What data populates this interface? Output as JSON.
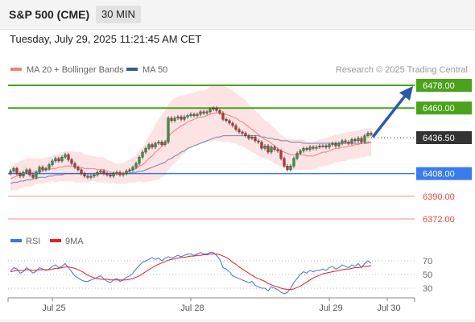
{
  "header": {
    "title": "S&P 500 (CME)",
    "timeframe": "30 MIN"
  },
  "timestamp": "Tuesday, July 29, 2025 11:21:45 AM CET",
  "legend": [
    {
      "label": "MA 20 + Bollinger Bands",
      "color": "#f08080"
    },
    {
      "label": "MA 50",
      "color": "#3a5a98"
    }
  ],
  "source": "Research © 2025 Trading Central",
  "colors": {
    "green": "#4aa31a",
    "blue": "#3a7bef",
    "red": "#ee4444",
    "dark": "#333333",
    "bb_fill": "#fde0e0",
    "arrow": "#2a5ba8"
  },
  "chart_data": {
    "type": "line",
    "instrument": "S&P 500 (CME)",
    "interval": "30 MIN",
    "price_axis": {
      "min": 6355,
      "max": 6492
    },
    "x_ticks": [
      {
        "label": "Jul 25",
        "i": 13
      },
      {
        "label": "Jul 28",
        "i": 56
      },
      {
        "label": "Jul 29",
        "i": 99
      },
      {
        "label": "Jul 30",
        "i": 117
      }
    ],
    "levels": [
      {
        "value": 6478.0,
        "label": "6478.00",
        "style": "resistance",
        "color": "#4aa31a"
      },
      {
        "value": 6460.0,
        "label": "6460.00",
        "style": "resistance",
        "color": "#4aa31a"
      },
      {
        "value": 6436.5,
        "label": "6436.50",
        "style": "last",
        "color": "#333333"
      },
      {
        "value": 6408.0,
        "label": "6408.00",
        "style": "pivot",
        "color": "#3a7bef"
      },
      {
        "value": 6390.0,
        "label": "6390.00",
        "style": "support",
        "color": "#ee4444"
      },
      {
        "value": 6372.0,
        "label": "6372.00",
        "style": "support",
        "color": "#ee4444"
      }
    ],
    "forecast": {
      "from": 6436.5,
      "to": 6478.0
    },
    "close": [
      6410,
      6412,
      6408,
      6406,
      6409,
      6411,
      6407,
      6405,
      6409,
      6413,
      6411,
      6412,
      6415,
      6418,
      6420,
      6418,
      6421,
      6423,
      6419,
      6416,
      6413,
      6411,
      6408,
      6406,
      6405,
      6406,
      6407,
      6409,
      6410,
      6408,
      6407,
      6406,
      6408,
      6409,
      6407,
      6408,
      6410,
      6411,
      6413,
      6416,
      6421,
      6425,
      6428,
      6431,
      6429,
      6432,
      6433,
      6431,
      6433,
      6452,
      6450,
      6452,
      6453,
      6451,
      6453,
      6454,
      6455,
      6454,
      6455,
      6457,
      6456,
      6457,
      6459,
      6460,
      6458,
      6456,
      6451,
      6450,
      6448,
      6446,
      6443,
      6441,
      6440,
      6438,
      6436,
      6437,
      6434,
      6433,
      6428,
      6430,
      6425,
      6429,
      6427,
      6426,
      6420,
      6414,
      6411,
      6414,
      6420,
      6424,
      6426,
      6428,
      6427,
      6429,
      6428,
      6429,
      6430,
      6430,
      6429,
      6431,
      6432,
      6430,
      6432,
      6434,
      6433,
      6432,
      6435,
      6434,
      6436,
      6433,
      6438,
      6440,
      6439
    ],
    "ma20": [
      6404,
      6405,
      6406,
      6407,
      6408,
      6409,
      6409,
      6409,
      6410,
      6410,
      6410,
      6411,
      6411,
      6412,
      6412,
      6413,
      6413,
      6414,
      6414,
      6414,
      6413,
      6413,
      6413,
      6412,
      6412,
      6412,
      6412,
      6411,
      6411,
      6411,
      6410,
      6409,
      6409,
      6408,
      6408,
      6408,
      6409,
      6410,
      6411,
      6412,
      6414,
      6415,
      6417,
      6420,
      6422,
      6425,
      6427,
      6430,
      6432,
      6437,
      6440,
      6442,
      6444,
      6446,
      6447,
      6449,
      6450,
      6451,
      6452,
      6453,
      6453,
      6454,
      6455,
      6456,
      6456,
      6456,
      6455,
      6455,
      6454,
      6453,
      6452,
      6450,
      6449,
      6447,
      6445,
      6443,
      6441,
      6439,
      6437,
      6435,
      6434,
      6432,
      6430,
      6428,
      6426,
      6425,
      6424,
      6423,
      6423,
      6423,
      6423,
      6423,
      6422,
      6422,
      6422,
      6423,
      6424,
      6425,
      6425,
      6426,
      6427,
      6428,
      6428,
      6429,
      6429,
      6430,
      6430,
      6431,
      6431,
      6432,
      6432,
      6433,
      6433
    ],
    "ma50": [
      6400,
      6401,
      6401,
      6402,
      6402,
      6403,
      6403,
      6404,
      6404,
      6405,
      6405,
      6405,
      6406,
      6406,
      6407,
      6407,
      6407,
      6408,
      6408,
      6408,
      6408,
      6408,
      6408,
      6408,
      6408,
      6408,
      6408,
      6408,
      6408,
      6408,
      6408,
      6408,
      6408,
      6408,
      6408,
      6408,
      6408,
      6408,
      6409,
      6409,
      6410,
      6410,
      6411,
      6412,
      6413,
      6414,
      6415,
      6416,
      6417,
      6419,
      6420,
      6422,
      6423,
      6425,
      6426,
      6428,
      6429,
      6430,
      6431,
      6432,
      6433,
      6434,
      6435,
      6436,
      6437,
      6437,
      6438,
      6438,
      6438,
      6438,
      6438,
      6438,
      6438,
      6438,
      6438,
      6438,
      6438,
      6438,
      6437,
      6437,
      6436,
      6436,
      6435,
      6435,
      6434,
      6434,
      6434,
      6433,
      6433,
      6433,
      6433,
      6432,
      6432,
      6432,
      6432,
      6432,
      6432,
      6432,
      6432,
      6432,
      6432,
      6432,
      6432,
      6432,
      6432,
      6432,
      6432,
      6432,
      6432,
      6432,
      6432,
      6432,
      6433
    ],
    "bb_width": [
      10,
      10,
      11,
      11,
      11,
      11,
      11,
      11,
      10,
      10,
      10,
      10,
      10,
      10,
      11,
      11,
      11,
      12,
      12,
      12,
      12,
      12,
      12,
      11,
      11,
      10,
      10,
      10,
      10,
      10,
      9,
      9,
      8,
      8,
      8,
      8,
      9,
      9,
      10,
      11,
      12,
      14,
      16,
      18,
      20,
      22,
      24,
      25,
      26,
      26,
      26,
      26,
      25,
      24,
      23,
      22,
      22,
      21,
      21,
      21,
      21,
      21,
      22,
      22,
      22,
      22,
      22,
      22,
      21,
      21,
      20,
      20,
      19,
      19,
      18,
      18,
      17,
      17,
      16,
      15,
      15,
      14,
      14,
      13,
      13,
      12,
      12,
      12,
      12,
      12,
      12,
      12,
      11,
      11,
      11,
      11,
      11,
      11,
      11,
      11,
      11,
      11,
      11,
      11,
      11,
      11,
      11,
      11,
      11,
      11,
      11,
      11,
      11
    ],
    "rsi_panel": {
      "legend": [
        {
          "label": "RSI",
          "color": "#4a6fd8"
        },
        {
          "label": "9MA",
          "color": "#dd2222"
        }
      ],
      "ticks": [
        {
          "label": "70",
          "value": 70
        },
        {
          "label": "50",
          "value": 50
        },
        {
          "label": "30",
          "value": 30
        }
      ],
      "rsi": [
        55,
        60,
        58,
        52,
        54,
        60,
        56,
        52,
        55,
        60,
        58,
        56,
        58,
        62,
        64,
        60,
        62,
        66,
        60,
        54,
        48,
        45,
        42,
        40,
        40,
        42,
        44,
        46,
        48,
        44,
        40,
        38,
        42,
        44,
        40,
        42,
        46,
        48,
        52,
        58,
        63,
        68,
        70,
        72,
        75,
        72,
        74,
        70,
        74,
        76,
        74,
        76,
        78,
        76,
        78,
        80,
        80,
        78,
        80,
        82,
        80,
        80,
        82,
        82,
        78,
        72,
        60,
        58,
        54,
        48,
        46,
        44,
        42,
        40,
        38,
        40,
        34,
        32,
        30,
        30,
        26,
        32,
        30,
        28,
        24,
        22,
        24,
        30,
        38,
        44,
        50,
        54,
        52,
        56,
        54,
        56,
        56,
        58,
        56,
        60,
        62,
        58,
        60,
        64,
        62,
        60,
        64,
        62,
        66,
        60,
        66,
        70,
        66
      ],
      "ma9": [
        54,
        55,
        56,
        56,
        56,
        57,
        57,
        56,
        56,
        57,
        57,
        57,
        57,
        58,
        59,
        59,
        60,
        61,
        61,
        60,
        59,
        57,
        55,
        52,
        49,
        47,
        45,
        44,
        43,
        43,
        43,
        42,
        42,
        42,
        42,
        42,
        42,
        43,
        44,
        46,
        48,
        51,
        54,
        57,
        60,
        63,
        65,
        67,
        69,
        71,
        72,
        73,
        74,
        75,
        75,
        76,
        77,
        77,
        78,
        78,
        79,
        79,
        80,
        80,
        80,
        79,
        77,
        75,
        72,
        68,
        65,
        61,
        58,
        55,
        52,
        49,
        46,
        44,
        42,
        40,
        37,
        35,
        33,
        32,
        30,
        29,
        28,
        28,
        29,
        31,
        33,
        36,
        39,
        42,
        45,
        47,
        49,
        51,
        52,
        53,
        54,
        55,
        56,
        57,
        58,
        58,
        59,
        60,
        60,
        61,
        62,
        62,
        63
      ]
    }
  }
}
